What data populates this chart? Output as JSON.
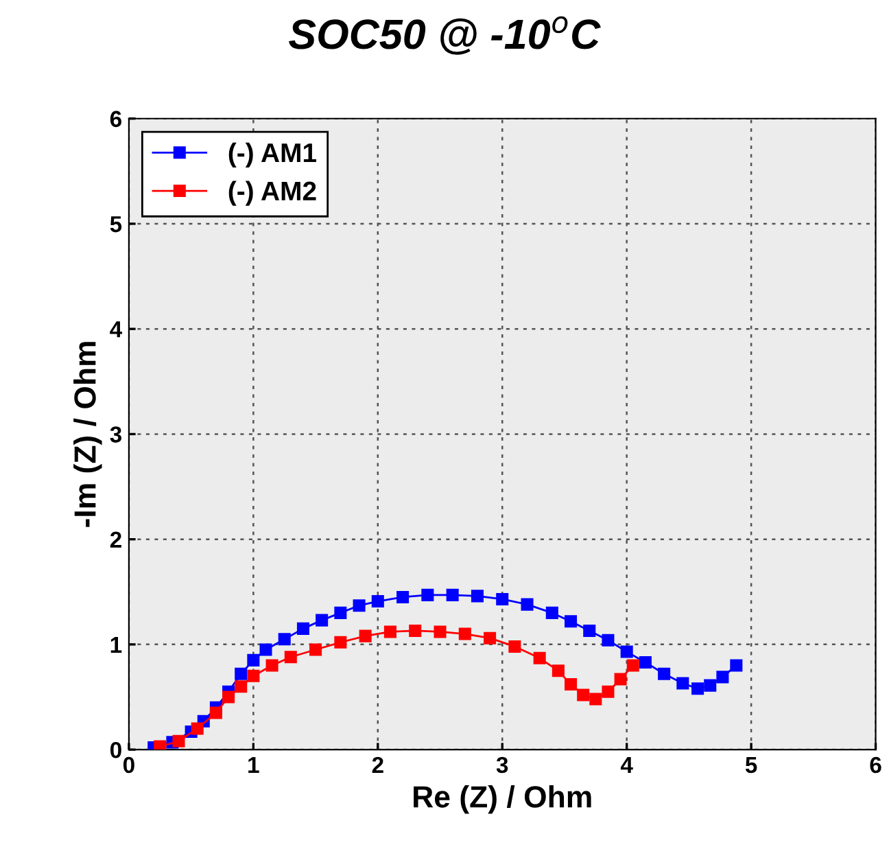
{
  "chart_data": {
    "type": "line",
    "title": "SOC50 @ -10$^{o}$C",
    "xlabel": "Re (Z) / Ohm",
    "ylabel": "-Im (Z) / Ohm",
    "xlim": [
      0,
      6
    ],
    "ylim": [
      0,
      6
    ],
    "xticks": [
      0,
      1,
      2,
      3,
      4,
      5,
      6
    ],
    "yticks": [
      0,
      1,
      2,
      3,
      4,
      5,
      6
    ],
    "grid": true,
    "legend": "top left",
    "marker": "square",
    "line_style": "solid",
    "series": [
      {
        "name": "(-) AM1",
        "color": "#0000ff",
        "x": [
          0.2,
          0.35,
          0.5,
          0.6,
          0.7,
          0.8,
          0.9,
          1.0,
          1.1,
          1.25,
          1.4,
          1.55,
          1.7,
          1.85,
          2.0,
          2.2,
          2.4,
          2.6,
          2.8,
          3.0,
          3.2,
          3.4,
          3.55,
          3.7,
          3.85,
          4.0,
          4.15,
          4.3,
          4.45,
          4.57,
          4.67,
          4.77,
          4.88
        ],
        "values": [
          0.02,
          0.07,
          0.17,
          0.27,
          0.4,
          0.55,
          0.72,
          0.85,
          0.95,
          1.05,
          1.15,
          1.23,
          1.3,
          1.37,
          1.41,
          1.45,
          1.47,
          1.47,
          1.46,
          1.43,
          1.38,
          1.3,
          1.22,
          1.13,
          1.04,
          0.93,
          0.83,
          0.72,
          0.63,
          0.58,
          0.61,
          0.69,
          0.8
        ]
      },
      {
        "name": "(-) AM2",
        "color": "#ff0000",
        "x": [
          0.25,
          0.4,
          0.55,
          0.7,
          0.8,
          0.9,
          1.0,
          1.15,
          1.3,
          1.5,
          1.7,
          1.9,
          2.1,
          2.3,
          2.5,
          2.7,
          2.9,
          3.1,
          3.3,
          3.45,
          3.55,
          3.65,
          3.75,
          3.85,
          3.95,
          4.05
        ],
        "values": [
          0.03,
          0.08,
          0.2,
          0.35,
          0.5,
          0.6,
          0.7,
          0.8,
          0.88,
          0.95,
          1.02,
          1.08,
          1.12,
          1.13,
          1.12,
          1.1,
          1.06,
          0.98,
          0.87,
          0.75,
          0.62,
          0.52,
          0.48,
          0.55,
          0.67,
          0.8
        ]
      }
    ]
  }
}
